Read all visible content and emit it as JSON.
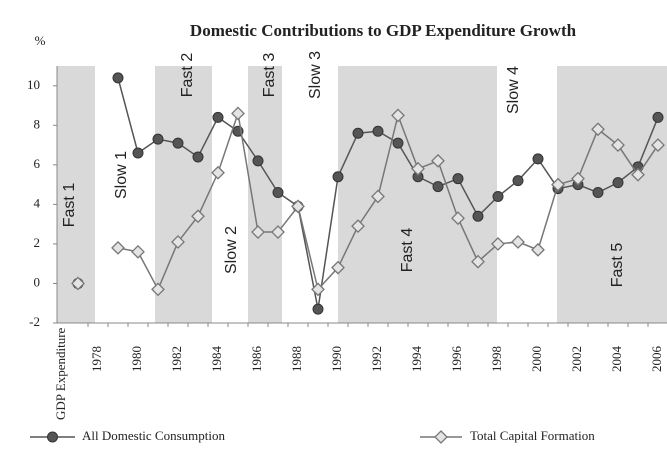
{
  "chart_data": {
    "type": "line",
    "title": "Domestic Contributions to GDP Expenditure Growth",
    "y_label": "%",
    "categories": [
      "GDP Expenditure",
      "1978",
      null,
      "1980",
      null,
      "1982",
      null,
      "1984",
      null,
      "1986",
      null,
      "1988",
      null,
      "1990",
      null,
      "1992",
      null,
      "1994",
      null,
      "1996",
      null,
      "1998",
      null,
      "2000",
      null,
      "2002",
      null,
      "2004",
      null,
      "2006"
    ],
    "series": [
      {
        "name": "All Domestic Consumption",
        "color": "#555555",
        "marker": "circle",
        "values": [
          0,
          null,
          10.4,
          6.6,
          7.3,
          7.1,
          6.4,
          8.4,
          7.7,
          6.2,
          4.6,
          3.9,
          -1.3,
          5.4,
          7.6,
          7.7,
          7.1,
          5.4,
          4.9,
          5.3,
          3.4,
          4.4,
          5.2,
          6.3,
          4.8,
          5.0,
          4.6,
          5.1,
          5.9,
          8.4
        ]
      },
      {
        "name": "Total Capital Formation",
        "color": "#777777",
        "marker": "diamond",
        "values": [
          0,
          null,
          1.8,
          1.6,
          -0.3,
          2.1,
          3.4,
          5.6,
          8.6,
          2.6,
          2.6,
          3.9,
          -0.3,
          0.8,
          2.9,
          4.4,
          8.5,
          5.8,
          6.2,
          3.3,
          1.1,
          2.0,
          2.1,
          1.7,
          5.0,
          5.3,
          7.8,
          7.0,
          5.5,
          7.0
        ]
      }
    ],
    "annotations": [
      "Fast 1",
      "Slow 1",
      "Fast 2",
      "Slow 2",
      "Fast 3",
      "Slow 3",
      "Fast 4",
      "Slow 4",
      "Fast 5"
    ],
    "ylim": [
      -2,
      11
    ],
    "yticks": [
      -2,
      0,
      2,
      4,
      6,
      8,
      10
    ]
  }
}
